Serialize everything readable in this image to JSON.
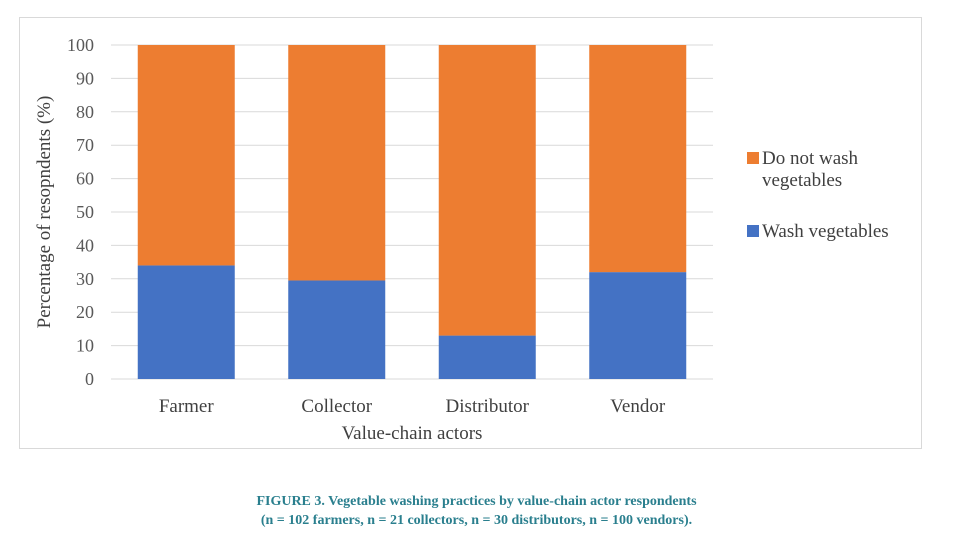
{
  "chart_data": {
    "type": "bar",
    "stacked": true,
    "categories": [
      "Farmer",
      "Collector",
      "Distributor",
      "Vendor"
    ],
    "series": [
      {
        "name": "Wash vegetables",
        "color": "#4472c4",
        "values": [
          34,
          29.5,
          13,
          32
        ]
      },
      {
        "name": "Do not wash vegetables",
        "color": "#ed7d31",
        "values": [
          66,
          70.5,
          87,
          68
        ]
      }
    ],
    "xlabel": "Value-chain actors",
    "ylabel": "Percentage of resopndents (%)",
    "ylim": [
      0,
      100
    ],
    "yticks": [
      0,
      10,
      20,
      30,
      40,
      50,
      60,
      70,
      80,
      90,
      100
    ],
    "grid": true,
    "legend_position": "right",
    "legend": [
      {
        "series": "Do not wash vegetables",
        "lines": [
          "Do not wash",
          "vegetables"
        ]
      },
      {
        "series": "Wash vegetables",
        "lines": [
          "Wash vegetables"
        ]
      }
    ]
  },
  "caption": {
    "line1": "FIGURE 3. Vegetable washing practices by value-chain actor respondents",
    "line2": "(n = 102 farmers, n = 21 collectors, n = 30 distributors, n = 100 vendors)."
  }
}
